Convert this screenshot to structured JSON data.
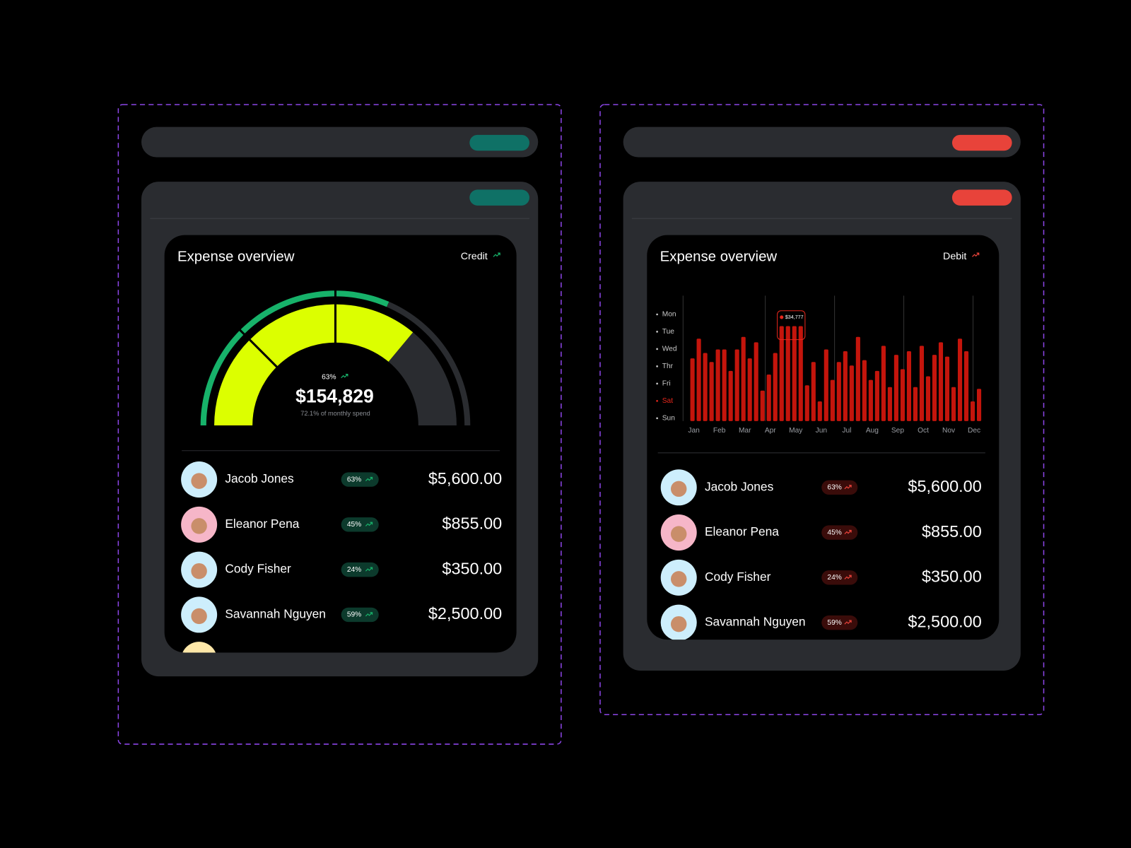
{
  "panels": [
    {
      "title": "Expense overview",
      "mode": "Credit",
      "gauge": {
        "percent_label": "63%",
        "amount": "$154,829",
        "caption": "72.1% of monthly spend",
        "outer_percent": 63,
        "fill_percent": 72.1,
        "outer_color": "#17b26a",
        "fill_color": "#dcff00"
      },
      "people": [
        {
          "name": "Jacob Jones",
          "badge": "63%",
          "amount": "$5,600.00"
        },
        {
          "name": "Eleanor Pena",
          "badge": "45%",
          "amount": "$855.00"
        },
        {
          "name": "Cody Fisher",
          "badge": "24%",
          "amount": "$350.00"
        },
        {
          "name": "Savannah Nguyen",
          "badge": "59%",
          "amount": "$2,500.00"
        }
      ]
    },
    {
      "title": "Expense overview",
      "mode": "Debit",
      "chart_data": {
        "type": "bar",
        "color": "#c4150c",
        "ylim": [
          0,
          7
        ],
        "categories": [
          "Jan",
          null,
          null,
          null,
          "Feb",
          null,
          null,
          null,
          "Mar",
          null,
          null,
          null,
          "Apr",
          null,
          null,
          null,
          "May",
          null,
          null,
          null,
          "Jun",
          null,
          null,
          null,
          "Jul",
          null,
          null,
          null,
          "Aug",
          null,
          null,
          null,
          "Sep",
          null,
          null,
          null,
          "Oct",
          null,
          null,
          null,
          "Nov",
          null,
          null,
          null,
          "Dec",
          null
        ],
        "values": [
          3.5,
          4.6,
          3.8,
          3.3,
          4.0,
          4.0,
          2.8,
          4.0,
          4.7,
          3.5,
          4.4,
          1.7,
          2.6,
          3.8,
          5.3,
          5.3,
          5.3,
          5.3,
          2.0,
          3.3,
          1.1,
          4.0,
          2.3,
          3.3,
          3.9,
          3.1,
          4.7,
          3.4,
          2.3,
          2.8,
          4.2,
          1.9,
          3.7,
          2.9,
          3.9,
          1.9,
          4.2,
          2.5,
          3.7,
          4.4,
          3.6,
          1.9,
          4.6,
          3.9,
          1.1,
          1.8
        ],
        "y_labels": [
          "Mon",
          "Tue",
          "Wed",
          "Thr",
          "Fri",
          "Sat",
          "Sun"
        ],
        "active_y_label": 5,
        "tooltip": "$34,777"
      },
      "people": [
        {
          "name": "Jacob Jones",
          "badge": "63%",
          "amount": "$5,600.00"
        },
        {
          "name": "Eleanor Pena",
          "badge": "45%",
          "amount": "$855.00"
        },
        {
          "name": "Cody Fisher",
          "badge": "24%",
          "amount": "$350.00"
        },
        {
          "name": "Savannah Nguyen",
          "badge": "59%",
          "amount": "$2,500.00"
        }
      ]
    }
  ]
}
